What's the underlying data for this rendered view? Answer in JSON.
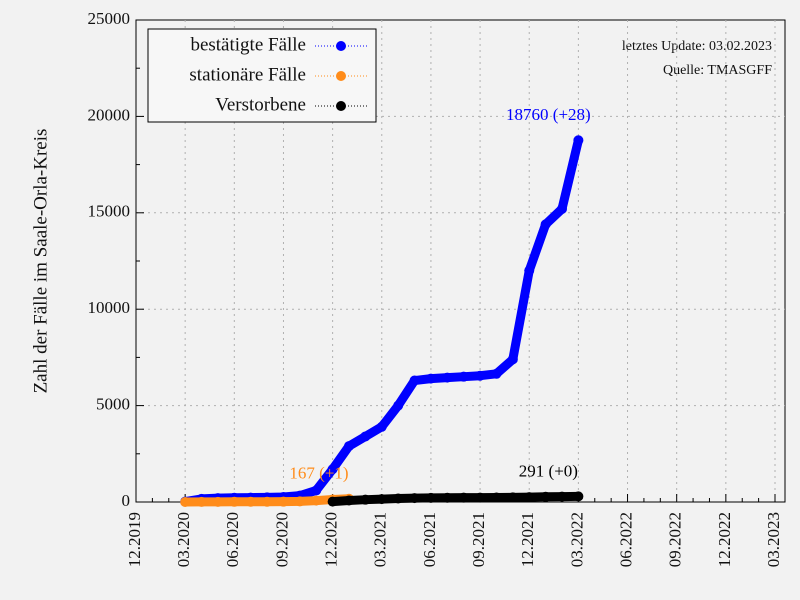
{
  "chart_data": {
    "type": "line",
    "ylabel": "Zahl der Fälle im Saale-Orla-Kreis",
    "notes": [
      "letztes Update: 03.02.2023",
      "Quelle: TMASGFF"
    ],
    "xlim": [
      "12.2019",
      "03.2023"
    ],
    "xticks": [
      "12.2019",
      "03.2020",
      "06.2020",
      "09.2020",
      "12.2020",
      "03.2021",
      "06.2021",
      "09.2021",
      "12.2021",
      "03.2022",
      "06.2022",
      "09.2022",
      "12.2022",
      "03.2023"
    ],
    "ylim": [
      0,
      25000
    ],
    "yticks": [
      0,
      5000,
      10000,
      15000,
      20000,
      25000
    ],
    "grid": true,
    "legend": "upper left",
    "series": [
      {
        "name": "bestätigte Fälle",
        "color": "#0000ff",
        "x": [
          "03.2020",
          "04.2020",
          "05.2020",
          "06.2020",
          "07.2020",
          "08.2020",
          "09.2020",
          "10.2020",
          "11.2020",
          "12.2020",
          "01.2021",
          "02.2021",
          "03.2021",
          "04.2021",
          "05.2021",
          "06.2021",
          "07.2021",
          "08.2021",
          "09.2021",
          "10.2021",
          "11.2021",
          "12.2021",
          "01.2022",
          "02.2022",
          "03.2022"
        ],
        "values": [
          20,
          160,
          200,
          220,
          230,
          240,
          260,
          330,
          600,
          1700,
          2900,
          3400,
          3900,
          5000,
          6300,
          6400,
          6450,
          6500,
          6550,
          6650,
          7400,
          12000,
          14400,
          15200,
          18760
        ],
        "value_labels": [
          null,
          null,
          null,
          null,
          null,
          null,
          null,
          null,
          null,
          null,
          null,
          null,
          null,
          null,
          null,
          null,
          null,
          null,
          null,
          null,
          null,
          null,
          null,
          null,
          "18760 (+28)"
        ]
      },
      {
        "name": "stationäre Fälle",
        "color": "#ff8c1a",
        "x": [
          "03.2020",
          "04.2020",
          "05.2020",
          "06.2020",
          "07.2020",
          "08.2020",
          "09.2020",
          "10.2020",
          "11.2020",
          "12.2020",
          "01.2021"
        ],
        "values": [
          0,
          5,
          8,
          10,
          12,
          14,
          18,
          30,
          70,
          130,
          167
        ],
        "value_labels": [
          null,
          null,
          null,
          null,
          null,
          null,
          null,
          null,
          null,
          null,
          "167 (+1)"
        ]
      },
      {
        "name": "Verstorbene",
        "color": "#000000",
        "x": [
          "12.2020",
          "01.2021",
          "02.2021",
          "03.2021",
          "04.2021",
          "05.2021",
          "06.2021",
          "07.2021",
          "08.2021",
          "09.2021",
          "10.2021",
          "11.2021",
          "12.2021",
          "01.2022",
          "02.2022",
          "03.2022"
        ],
        "values": [
          20,
          80,
          120,
          150,
          180,
          200,
          215,
          220,
          225,
          228,
          232,
          240,
          255,
          270,
          282,
          291
        ],
        "value_labels": [
          null,
          null,
          null,
          null,
          null,
          null,
          null,
          null,
          null,
          null,
          null,
          null,
          null,
          null,
          null,
          "291 (+0)"
        ]
      }
    ]
  }
}
